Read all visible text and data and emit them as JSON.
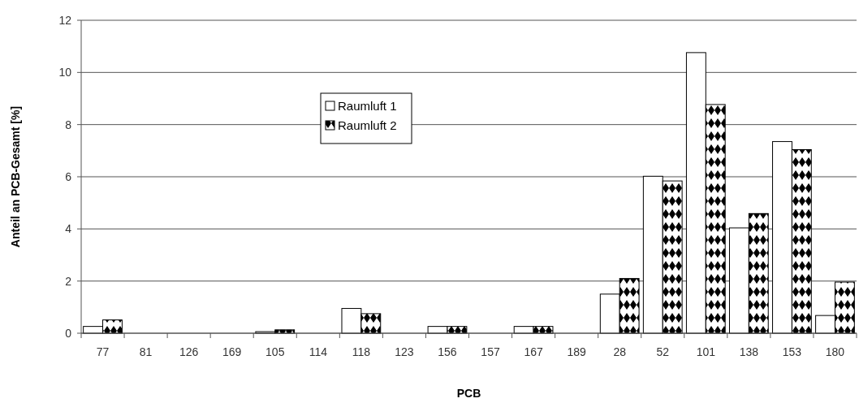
{
  "chart_data": {
    "type": "bar",
    "xlabel": "PCB",
    "ylabel": "Anteil an PCB-Gesamt [%]",
    "categories": [
      "77",
      "81",
      "126",
      "169",
      "105",
      "114",
      "118",
      "123",
      "156",
      "157",
      "167",
      "189",
      "28",
      "52",
      "101",
      "138",
      "153",
      "180"
    ],
    "series": [
      {
        "name": "Raumluft 1",
        "color": "#ffffff",
        "values": [
          0.26,
          0,
          0,
          0,
          0.06,
          0,
          0.95,
          0,
          0.26,
          null,
          0.26,
          null,
          1.5,
          6.02,
          10.76,
          4.04,
          7.35,
          0.68
        ]
      },
      {
        "name": "Raumluft 2",
        "color": "#000000",
        "values": [
          0.51,
          0,
          0,
          0,
          0.13,
          0,
          0.75,
          0,
          0.26,
          null,
          0.26,
          null,
          2.1,
          5.84,
          8.77,
          4.59,
          7.04,
          1.96
        ]
      }
    ],
    "ylim": [
      0,
      12
    ],
    "yticks": [
      0,
      2,
      4,
      6,
      8,
      10,
      12
    ],
    "grid": "y",
    "legend": "top left"
  }
}
